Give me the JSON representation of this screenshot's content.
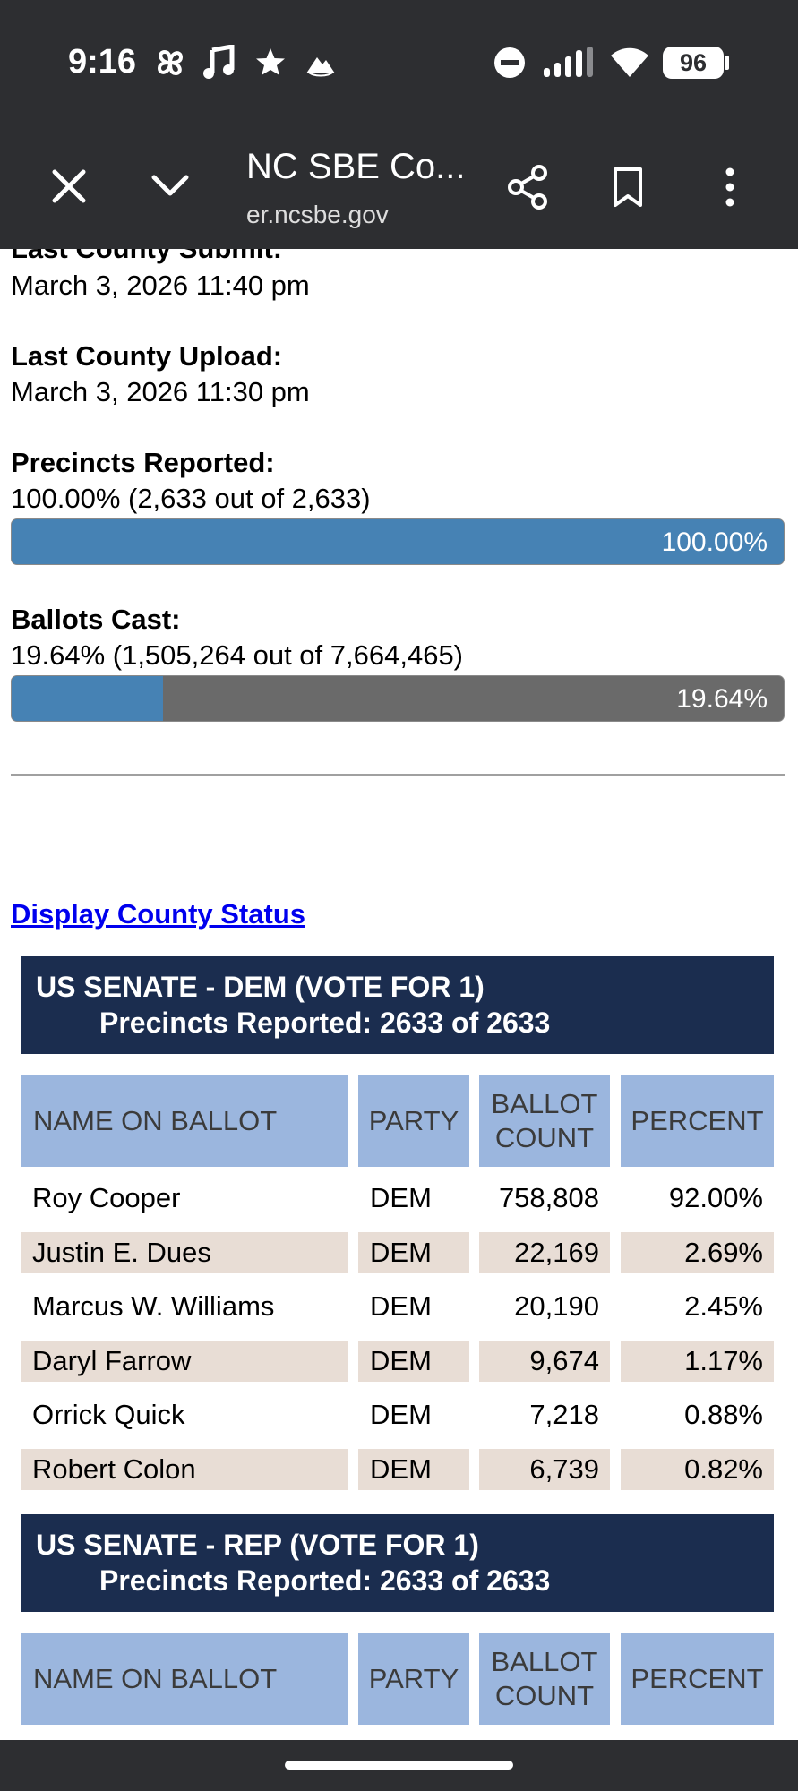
{
  "status_bar": {
    "time": "9:16",
    "battery": "96",
    "icons": [
      "pinwheel-icon",
      "music-note-icon",
      "star-icon",
      "paramount-icon",
      "do-not-disturb-icon",
      "signal-icon",
      "wifi-icon",
      "battery-icon"
    ]
  },
  "browser": {
    "title": "NC SBE Co...",
    "url": "er.ncsbe.gov",
    "icons": [
      "close-icon",
      "chevron-down-icon",
      "share-icon",
      "bookmark-icon",
      "more-vert-icon"
    ]
  },
  "summary": {
    "last_submit_label": "Last County Submit:",
    "last_submit_value": "March 3, 2026 11:40 pm",
    "last_upload_label": "Last County Upload:",
    "last_upload_value": "March 3, 2026 11:30 pm",
    "precincts_label": "Precincts Reported:",
    "precincts_value": "100.00% (2,633 out of 2,633)",
    "precincts_pct": "100.00%",
    "precincts_fraction": 1.0,
    "ballots_label": "Ballots Cast:",
    "ballots_value": "19.64% (1,505,264 out of 7,664,465)",
    "ballots_pct": "19.64%",
    "ballots_fraction": 0.1964
  },
  "county_link": "Display County Status",
  "races": [
    {
      "title": "US SENATE - DEM (VOTE FOR 1)",
      "precincts": "Precincts Reported: 2633 of 2633",
      "headers": {
        "name": "NAME ON BALLOT",
        "party": "PARTY",
        "ballot1": "BALLOT",
        "ballot2": "COUNT",
        "percent": "PERCENT"
      },
      "rows": [
        {
          "name": "Roy Cooper",
          "party": "DEM",
          "count": "758,808",
          "percent": "92.00%"
        },
        {
          "name": "Justin E. Dues",
          "party": "DEM",
          "count": "22,169",
          "percent": "2.69%"
        },
        {
          "name": "Marcus W. Williams",
          "party": "DEM",
          "count": "20,190",
          "percent": "2.45%"
        },
        {
          "name": "Daryl Farrow",
          "party": "DEM",
          "count": "9,674",
          "percent": "1.17%"
        },
        {
          "name": "Orrick Quick",
          "party": "DEM",
          "count": "7,218",
          "percent": "0.88%"
        },
        {
          "name": "Robert Colon",
          "party": "DEM",
          "count": "6,739",
          "percent": "0.82%"
        }
      ]
    },
    {
      "title": "US SENATE - REP (VOTE FOR 1)",
      "precincts": "Precincts Reported: 2633 of 2633",
      "headers": {
        "name": "NAME ON BALLOT",
        "party": "PARTY",
        "ballot1": "BALLOT",
        "ballot2": "COUNT",
        "percent": "PERCENT"
      },
      "rows": []
    }
  ]
}
